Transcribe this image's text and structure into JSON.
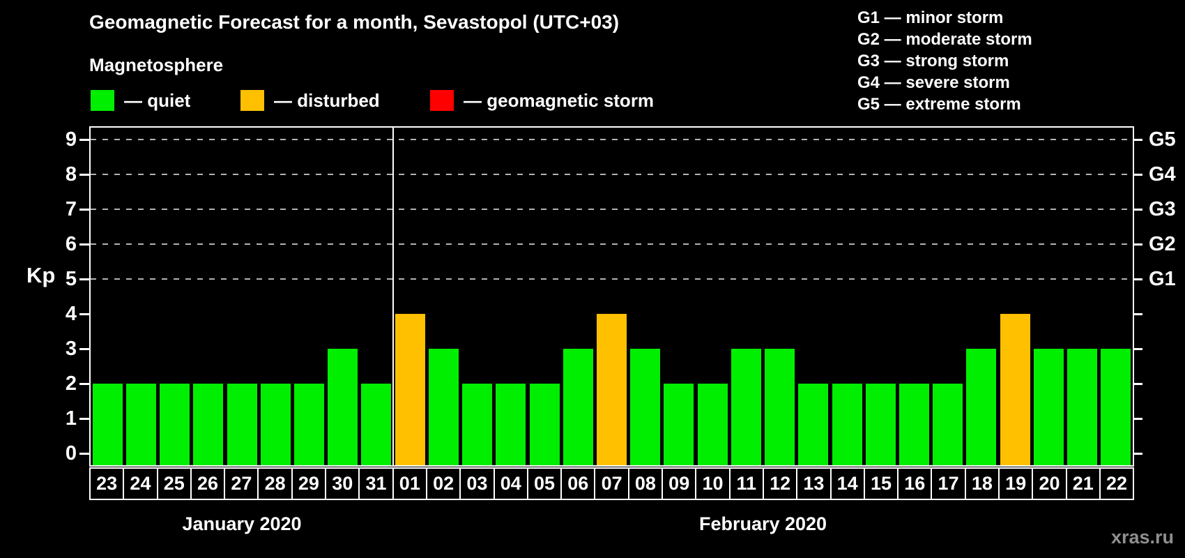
{
  "header": {
    "title": "Geomagnetic Forecast for a month, Sevastopol (UTC+03)",
    "subtitle": "Magnetosphere"
  },
  "legend": {
    "items": [
      {
        "key": "quiet",
        "label": "— quiet",
        "color": "#00EE00"
      },
      {
        "key": "disturbed",
        "label": "— disturbed",
        "color": "#FFC000"
      },
      {
        "key": "storm",
        "label": "— geomagnetic storm",
        "color": "#FF0000"
      }
    ]
  },
  "g_legend": {
    "items": [
      "G1 — minor storm",
      "G2 — moderate storm",
      "G3 — strong storm",
      "G4 — severe storm",
      "G5 — extreme storm"
    ]
  },
  "chart_data": {
    "type": "bar",
    "title": "Geomagnetic Forecast for a month, Sevastopol (UTC+03)",
    "ylabel": "Kp",
    "ylim": [
      0,
      9
    ],
    "y_ticks": [
      0,
      1,
      2,
      3,
      4,
      5,
      6,
      7,
      8,
      9
    ],
    "gridlines_at": [
      5,
      6,
      7,
      8,
      9
    ],
    "grid": "dashed-horizontal",
    "legend_position": "top",
    "right_axis_labels": [
      {
        "label": "G1",
        "value": 5
      },
      {
        "label": "G2",
        "value": 6
      },
      {
        "label": "G3",
        "value": 7
      },
      {
        "label": "G4",
        "value": 8
      },
      {
        "label": "G5",
        "value": 9
      }
    ],
    "status_colors": {
      "quiet": "#00EE00",
      "disturbed": "#FFC000",
      "storm": "#FF0000"
    },
    "month_sections": [
      {
        "label": "January 2020",
        "days": 9
      },
      {
        "label": "February 2020",
        "days": 22
      }
    ],
    "bars": [
      {
        "day": "23",
        "kp": 2,
        "status": "quiet"
      },
      {
        "day": "24",
        "kp": 2,
        "status": "quiet"
      },
      {
        "day": "25",
        "kp": 2,
        "status": "quiet"
      },
      {
        "day": "26",
        "kp": 2,
        "status": "quiet"
      },
      {
        "day": "27",
        "kp": 2,
        "status": "quiet"
      },
      {
        "day": "28",
        "kp": 2,
        "status": "quiet"
      },
      {
        "day": "29",
        "kp": 2,
        "status": "quiet"
      },
      {
        "day": "30",
        "kp": 3,
        "status": "quiet"
      },
      {
        "day": "31",
        "kp": 2,
        "status": "quiet"
      },
      {
        "day": "01",
        "kp": 4,
        "status": "disturbed"
      },
      {
        "day": "02",
        "kp": 3,
        "status": "quiet"
      },
      {
        "day": "03",
        "kp": 2,
        "status": "quiet"
      },
      {
        "day": "04",
        "kp": 2,
        "status": "quiet"
      },
      {
        "day": "05",
        "kp": 2,
        "status": "quiet"
      },
      {
        "day": "06",
        "kp": 3,
        "status": "quiet"
      },
      {
        "day": "07",
        "kp": 4,
        "status": "disturbed"
      },
      {
        "day": "08",
        "kp": 3,
        "status": "quiet"
      },
      {
        "day": "09",
        "kp": 2,
        "status": "quiet"
      },
      {
        "day": "10",
        "kp": 2,
        "status": "quiet"
      },
      {
        "day": "11",
        "kp": 3,
        "status": "quiet"
      },
      {
        "day": "12",
        "kp": 3,
        "status": "quiet"
      },
      {
        "day": "13",
        "kp": 2,
        "status": "quiet"
      },
      {
        "day": "14",
        "kp": 2,
        "status": "quiet"
      },
      {
        "day": "15",
        "kp": 2,
        "status": "quiet"
      },
      {
        "day": "16",
        "kp": 2,
        "status": "quiet"
      },
      {
        "day": "17",
        "kp": 2,
        "status": "quiet"
      },
      {
        "day": "18",
        "kp": 3,
        "status": "quiet"
      },
      {
        "day": "19",
        "kp": 4,
        "status": "disturbed"
      },
      {
        "day": "20",
        "kp": 3,
        "status": "quiet"
      },
      {
        "day": "21",
        "kp": 3,
        "status": "quiet"
      },
      {
        "day": "22",
        "kp": 3,
        "status": "quiet"
      }
    ]
  },
  "watermark": "xras.ru"
}
